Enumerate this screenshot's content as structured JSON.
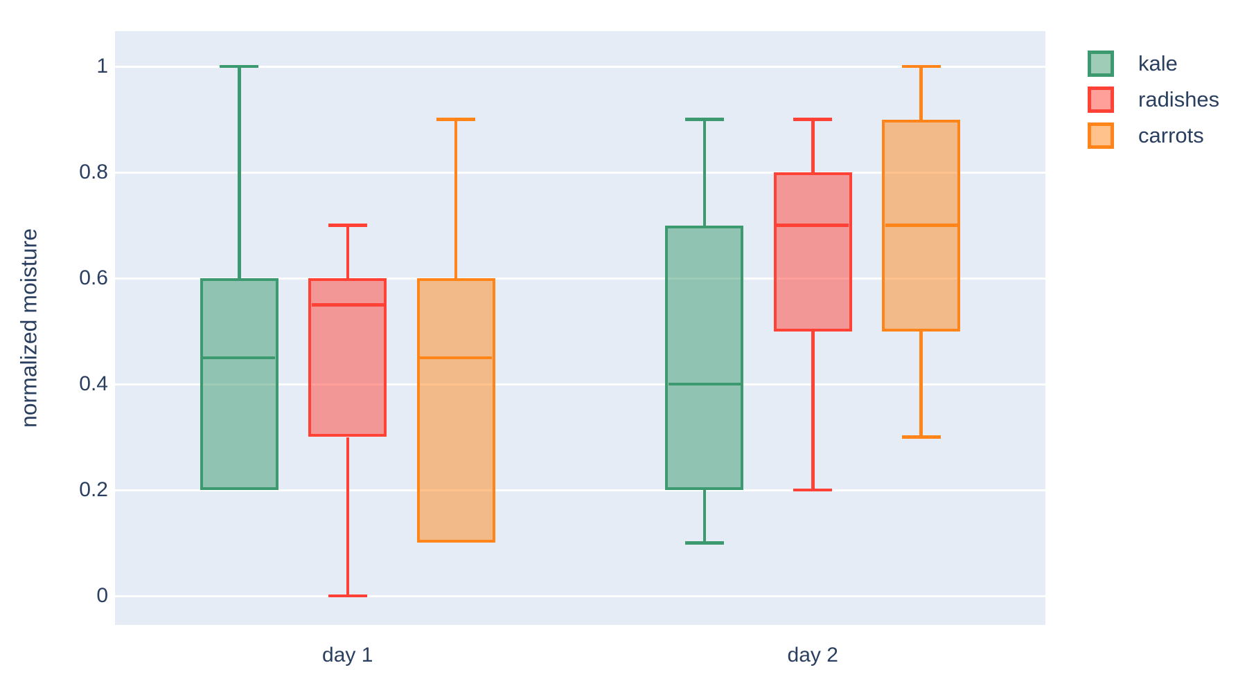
{
  "figure": {
    "background_color": "#FFFFFF",
    "plot_background_color": "#E5ECF6",
    "grid_color": "#FFFFFF",
    "text_color": "#2A3F5F"
  },
  "chart_data": {
    "type": "box",
    "boxmode": "group",
    "orientation": "vertical",
    "title": "",
    "xlabel": "",
    "ylabel": "normalized moisture",
    "categories": [
      "day 1",
      "day 2"
    ],
    "yaxis": {
      "title": "normalized moisture",
      "range": [
        -0.0549,
        1.0667
      ],
      "tickvals": [
        0,
        0.2,
        0.4,
        0.6,
        0.8,
        1
      ],
      "ticklabels": [
        "0",
        "0.2",
        "0.4",
        "0.6",
        "0.8",
        "1"
      ],
      "grid": true
    },
    "legend": {
      "position": "top-right",
      "items": [
        "kale",
        "radishes",
        "carrots"
      ]
    },
    "series": [
      {
        "name": "kale",
        "color": "#3D9970",
        "boxes": [
          {
            "category": "day 1",
            "min": 0.2,
            "q1": 0.2,
            "median": 0.45,
            "q3": 0.6,
            "max": 1.0
          },
          {
            "category": "day 2",
            "min": 0.1,
            "q1": 0.2,
            "median": 0.4,
            "q3": 0.7,
            "max": 0.9
          }
        ]
      },
      {
        "name": "radishes",
        "color": "#FF4136",
        "boxes": [
          {
            "category": "day 1",
            "min": 0.0,
            "q1": 0.3,
            "median": 0.55,
            "q3": 0.6,
            "max": 0.7
          },
          {
            "category": "day 2",
            "min": 0.2,
            "q1": 0.5,
            "median": 0.7,
            "q3": 0.8,
            "max": 0.9
          }
        ]
      },
      {
        "name": "carrots",
        "color": "#FF851B",
        "boxes": [
          {
            "category": "day 1",
            "min": 0.1,
            "q1": 0.1,
            "median": 0.45,
            "q3": 0.6,
            "max": 0.9
          },
          {
            "category": "day 2",
            "min": 0.3,
            "q1": 0.5,
            "median": 0.7,
            "q3": 0.9,
            "max": 1.0
          }
        ]
      }
    ],
    "layout_hints": {
      "category_centers": [
        0.25,
        0.75
      ],
      "series_offsets": [
        -0.1165,
        0,
        0.1165
      ],
      "box_width_frac": 0.0841,
      "cap_width_frac": 0.0417
    }
  }
}
